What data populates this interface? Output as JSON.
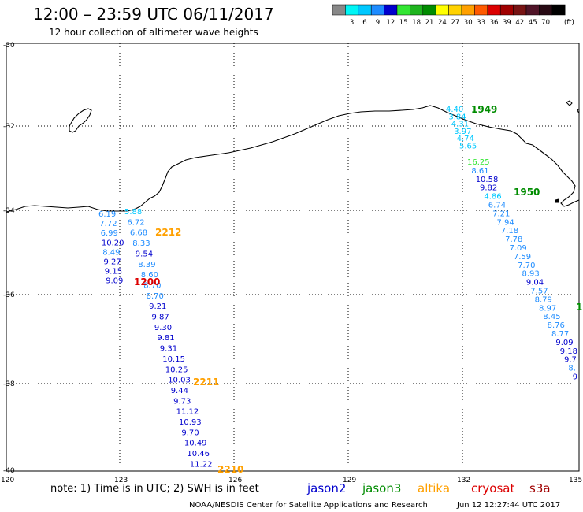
{
  "title": "12:00 – 23:59 UTC 06/11/2017",
  "subtitle": "12 hour collection of altimeter wave heights",
  "colorbar": {
    "unit": "(ft)",
    "bins": [
      {
        "color": "#888888",
        "label": ""
      },
      {
        "color": "#00f5f5",
        "label": "3"
      },
      {
        "color": "#00c8ff",
        "label": "6"
      },
      {
        "color": "#1e8cff",
        "label": "9"
      },
      {
        "color": "#0000cd",
        "label": "12"
      },
      {
        "color": "#32e632",
        "label": "15"
      },
      {
        "color": "#1eb41e",
        "label": "18"
      },
      {
        "color": "#008c00",
        "label": "21"
      },
      {
        "color": "#ffff00",
        "label": "24"
      },
      {
        "color": "#ffd200",
        "label": "27"
      },
      {
        "color": "#ffa000",
        "label": "30"
      },
      {
        "color": "#ff5a00",
        "label": "33"
      },
      {
        "color": "#dc0000",
        "label": "36"
      },
      {
        "color": "#a00000",
        "label": "39"
      },
      {
        "color": "#781414",
        "label": "42"
      },
      {
        "color": "#501428",
        "label": "45"
      },
      {
        "color": "#280a14",
        "label": "70"
      },
      {
        "color": "#000000",
        "label": ""
      }
    ]
  },
  "axes": {
    "lat_labels": [
      "-30",
      "-32",
      "-34",
      "-36",
      "-38",
      "-40"
    ],
    "lon_labels": [
      "120",
      "123",
      "126",
      "129",
      "132",
      "135"
    ]
  },
  "tracks": [
    {
      "name": "t1",
      "points": [
        {
          "v": "6.19",
          "c": "#1e8cff"
        },
        {
          "v": "7.72",
          "c": "#1e8cff"
        },
        {
          "v": "6.99",
          "c": "#1e8cff"
        },
        {
          "v": "10.20",
          "c": "#0000cd"
        },
        {
          "v": "8.49",
          "c": "#1e8cff"
        },
        {
          "v": "9.27",
          "c": "#0000cd"
        },
        {
          "v": "9.15",
          "c": "#0000cd"
        },
        {
          "v": "9.09",
          "c": "#0000cd"
        }
      ]
    },
    {
      "name": "t2",
      "points": [
        {
          "v": "5.88",
          "c": "#00c8ff"
        },
        {
          "v": "6.72",
          "c": "#1e8cff"
        },
        {
          "v": "6.68",
          "c": "#1e8cff"
        },
        {
          "v": "8.33",
          "c": "#1e8cff"
        },
        {
          "v": "9.54",
          "c": "#0000cd"
        },
        {
          "v": "8.39",
          "c": "#1e8cff"
        },
        {
          "v": "8.60",
          "c": "#1e8cff"
        },
        {
          "v": "8.70",
          "c": "#1e8cff"
        },
        {
          "v": "8.70",
          "c": "#1e8cff"
        },
        {
          "v": "9.21",
          "c": "#0000cd"
        },
        {
          "v": "9.87",
          "c": "#0000cd"
        },
        {
          "v": "9.30",
          "c": "#0000cd"
        },
        {
          "v": "9.81",
          "c": "#0000cd"
        },
        {
          "v": "9.31",
          "c": "#0000cd"
        },
        {
          "v": "10.15",
          "c": "#0000cd"
        },
        {
          "v": "10.25",
          "c": "#0000cd"
        },
        {
          "v": "10.03",
          "c": "#0000cd"
        },
        {
          "v": "9.44",
          "c": "#0000cd"
        },
        {
          "v": "9.73",
          "c": "#0000cd"
        },
        {
          "v": "11.12",
          "c": "#0000cd"
        },
        {
          "v": "10.93",
          "c": "#0000cd"
        },
        {
          "v": "9.70",
          "c": "#0000cd"
        },
        {
          "v": "10.49",
          "c": "#0000cd"
        },
        {
          "v": "10.46",
          "c": "#0000cd"
        },
        {
          "v": "11.22",
          "c": "#0000cd"
        }
      ]
    },
    {
      "name": "t3",
      "points": [
        {
          "v": "4.40",
          "c": "#00c8ff"
        },
        {
          "v": "3.84",
          "c": "#00c8ff"
        },
        {
          "v": "4.31",
          "c": "#00c8ff"
        },
        {
          "v": "3.97",
          "c": "#00c8ff"
        },
        {
          "v": "4.74",
          "c": "#00c8ff"
        },
        {
          "v": "5.65",
          "c": "#00c8ff"
        }
      ]
    },
    {
      "name": "t4",
      "points": [
        {
          "v": "16.25",
          "c": "#32e632"
        },
        {
          "v": "8.61",
          "c": "#1e8cff"
        },
        {
          "v": "10.58",
          "c": "#0000cd"
        },
        {
          "v": "9.82",
          "c": "#0000cd"
        },
        {
          "v": "4.86",
          "c": "#00c8ff"
        },
        {
          "v": "6.74",
          "c": "#1e8cff"
        },
        {
          "v": "7.21",
          "c": "#1e8cff"
        },
        {
          "v": "7.94",
          "c": "#1e8cff"
        },
        {
          "v": "7.18",
          "c": "#1e8cff"
        },
        {
          "v": "7.78",
          "c": "#1e8cff"
        },
        {
          "v": "7.09",
          "c": "#1e8cff"
        },
        {
          "v": "7.59",
          "c": "#1e8cff"
        },
        {
          "v": "7.70",
          "c": "#1e8cff"
        },
        {
          "v": "8.93",
          "c": "#1e8cff"
        },
        {
          "v": "9.04",
          "c": "#0000cd"
        },
        {
          "v": "7.57",
          "c": "#1e8cff"
        },
        {
          "v": "8.79",
          "c": "#1e8cff"
        },
        {
          "v": "8.97",
          "c": "#1e8cff"
        },
        {
          "v": "8.45",
          "c": "#1e8cff"
        },
        {
          "v": "8.76",
          "c": "#1e8cff"
        },
        {
          "v": "8.77",
          "c": "#1e8cff"
        },
        {
          "v": "9.09",
          "c": "#0000cd"
        },
        {
          "v": "9.18",
          "c": "#0000cd"
        },
        {
          "v": "9.7",
          "c": "#0000cd"
        },
        {
          "v": "8.",
          "c": "#1e8cff"
        },
        {
          "v": "9",
          "c": "#0000cd"
        }
      ]
    }
  ],
  "time_labels": [
    {
      "text": "2212",
      "color": "#ffa000"
    },
    {
      "text": "1200",
      "color": "#dc0000"
    },
    {
      "text": "2211",
      "color": "#ffa000"
    },
    {
      "text": "2210",
      "color": "#ffa000"
    },
    {
      "text": "1949",
      "color": "#008c00"
    },
    {
      "text": "1950",
      "color": "#008c00"
    },
    {
      "text": "1",
      "color": "#008c00"
    }
  ],
  "note": "note: 1) Time is in UTC; 2) SWH is in feet",
  "satellites": [
    {
      "name": "jason2",
      "color": "#0000cd"
    },
    {
      "name": "jason3",
      "color": "#008c00"
    },
    {
      "name": "altika",
      "color": "#ffa000"
    },
    {
      "name": "cryosat",
      "color": "#dc0000"
    },
    {
      "name": "s3a",
      "color": "#a00000"
    }
  ],
  "credit_left": "NOAA/NESDIS Center for Satellite Applications and Research",
  "credit_right": "Jun 12 12:27:44 UTC 2017"
}
